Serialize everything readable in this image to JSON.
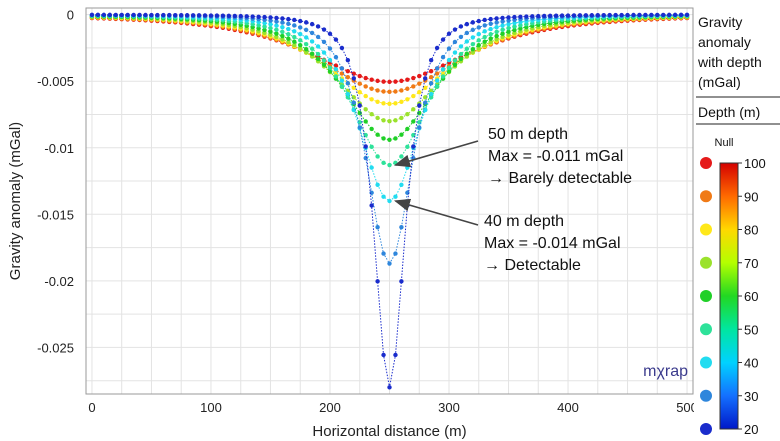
{
  "chart_data": {
    "type": "scatter",
    "title": "",
    "xlabel": "Horizontal distance (m)",
    "ylabel": "Gravity anomaly (mGal)",
    "xlim": [
      -5,
      505
    ],
    "ylim": [
      -0.0285,
      0.0005
    ],
    "x_ticks": [
      0,
      100,
      200,
      300,
      400,
      500
    ],
    "y_ticks": [
      0,
      -0.005,
      -0.01,
      -0.015,
      -0.02,
      -0.025
    ],
    "x_tick_labels": [
      "0",
      "100",
      "200",
      "300",
      "400",
      "500"
    ],
    "y_tick_labels": [
      "0",
      "-0.005",
      "-0.01",
      "-0.015",
      "-0.02",
      "-0.025"
    ],
    "grid": true,
    "center_x": 250,
    "x_step": 5,
    "series": [
      {
        "name": "100",
        "depth": 100,
        "color": "#e51a1a",
        "min": -0.00505
      },
      {
        "name": "90",
        "depth": 90,
        "color": "#f07a16",
        "min": -0.0058
      },
      {
        "name": "80",
        "depth": 80,
        "color": "#ffe81a",
        "min": -0.0067
      },
      {
        "name": "70",
        "depth": 70,
        "color": "#9be22c",
        "min": -0.008
      },
      {
        "name": "60",
        "depth": 60,
        "color": "#20d028",
        "min": -0.0094
      },
      {
        "name": "50",
        "depth": 50,
        "color": "#2ee29a",
        "min": -0.0113
      },
      {
        "name": "40",
        "depth": 40,
        "color": "#22dcf0",
        "min": -0.014
      },
      {
        "name": "30",
        "depth": 30,
        "color": "#2e86dc",
        "min": -0.0187
      },
      {
        "name": "20",
        "depth": 20,
        "color": "#1a2ccc",
        "min": -0.028
      }
    ],
    "annotations": [
      {
        "lines": [
          "50 m depth",
          "Max = -0.011 mGal",
          "→ Barely detectable"
        ],
        "x": 250,
        "y": -0.0113
      },
      {
        "lines": [
          "40 m depth",
          "Max = -0.014 mGal",
          "→ Detectable"
        ],
        "x": 250,
        "y": -0.014
      }
    ],
    "legend": {
      "title_lines": [
        "Gravity",
        "anomaly",
        "with depth",
        "(mGal)"
      ],
      "subtitle": "Depth (m)",
      "null_label": "Null",
      "scale_ticks": [
        "100",
        "90",
        "80",
        "70",
        "60",
        "50",
        "40",
        "30",
        "20"
      ],
      "scale_range": [
        20,
        100
      ],
      "position": "right"
    },
    "watermark": "mχrap"
  }
}
